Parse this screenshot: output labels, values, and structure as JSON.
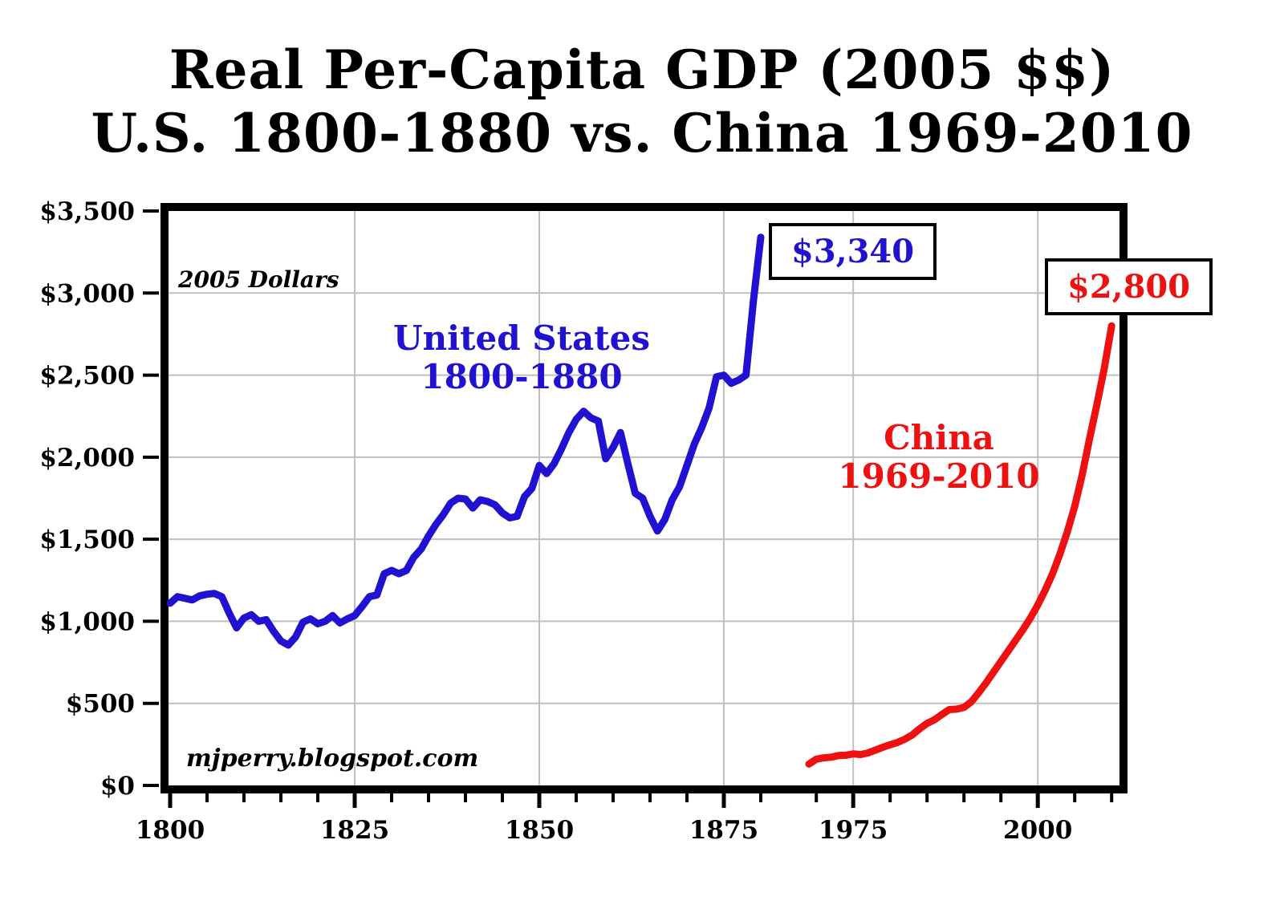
{
  "title": {
    "line1": "Real Per-Capita GDP (2005 $$)",
    "line2": "U.S. 1800-1880 vs. China 1969-2010"
  },
  "annotations": {
    "units_note": "2005 Dollars",
    "source_credit": "mjperry.blogspot.com",
    "us_series_label_line1": "United States",
    "us_series_label_line2": "1800-1880",
    "china_series_label_line1": "China",
    "china_series_label_line2": "1969-2010",
    "us_endpoint_value": "$3,340",
    "china_endpoint_value": "$2,800"
  },
  "colors": {
    "us": "#2012d0",
    "china": "#ee1111",
    "grid": "#bfbfbf",
    "frame": "#000000",
    "background": "#ffffff"
  },
  "chart_data": {
    "type": "line",
    "title": "Real Per-Capita GDP (2005 $$) — U.S. 1800-1880 vs. China 1969-2010",
    "ylabel": "2005 Dollars",
    "ylim": [
      0,
      3500
    ],
    "grid": true,
    "legend_position": "none",
    "axis_note": "x-axis has a break: U.S. years 1800-1880 plotted on the left, China years 1969-2010 on the right with the same per-year spacing",
    "ytick_values": [
      0,
      500,
      1000,
      1500,
      2000,
      2500,
      3000,
      3500
    ],
    "ytick_labels": [
      "$0",
      "$500",
      "$1,000",
      "$1,500",
      "$2,000",
      "$2,500",
      "$3,000",
      "$3,500"
    ],
    "xticks": [
      {
        "year": 1800,
        "label": "1800"
      },
      {
        "year": 1825,
        "label": "1825"
      },
      {
        "year": 1850,
        "label": "1850"
      },
      {
        "year": 1875,
        "label": "1875"
      },
      {
        "year": 1975,
        "label": "1975"
      },
      {
        "year": 2000,
        "label": "2000"
      }
    ],
    "minor_tick_years": [
      1805,
      1810,
      1815,
      1820,
      1830,
      1835,
      1840,
      1845,
      1855,
      1860,
      1865,
      1870,
      1880,
      1970,
      1980,
      1985,
      1990,
      1995,
      2005,
      2010
    ],
    "grid_years": [
      1825,
      1850,
      1875,
      1975,
      2000
    ],
    "series": [
      {
        "name": "United States 1800-1880",
        "color_key": "us",
        "endpoint_label": "$3,340",
        "x": [
          1800,
          1801,
          1802,
          1803,
          1804,
          1805,
          1806,
          1807,
          1808,
          1809,
          1810,
          1811,
          1812,
          1813,
          1814,
          1815,
          1816,
          1817,
          1818,
          1819,
          1820,
          1821,
          1822,
          1823,
          1824,
          1825,
          1826,
          1827,
          1828,
          1829,
          1830,
          1831,
          1832,
          1833,
          1834,
          1835,
          1836,
          1837,
          1838,
          1839,
          1840,
          1841,
          1842,
          1843,
          1844,
          1845,
          1846,
          1847,
          1848,
          1849,
          1850,
          1851,
          1852,
          1853,
          1854,
          1855,
          1856,
          1857,
          1858,
          1859,
          1860,
          1861,
          1862,
          1863,
          1864,
          1865,
          1866,
          1867,
          1868,
          1869,
          1870,
          1871,
          1872,
          1873,
          1874,
          1875,
          1876,
          1877,
          1878,
          1879,
          1880
        ],
        "values": [
          1110,
          1150,
          1140,
          1130,
          1155,
          1165,
          1170,
          1150,
          1050,
          960,
          1020,
          1040,
          1000,
          1010,
          940,
          880,
          855,
          905,
          995,
          1015,
          985,
          1000,
          1035,
          990,
          1015,
          1035,
          1090,
          1150,
          1160,
          1290,
          1310,
          1290,
          1310,
          1390,
          1440,
          1520,
          1590,
          1650,
          1720,
          1750,
          1745,
          1690,
          1740,
          1730,
          1710,
          1660,
          1630,
          1640,
          1760,
          1810,
          1950,
          1900,
          1960,
          2050,
          2150,
          2230,
          2280,
          2240,
          2220,
          1990,
          2060,
          2150,
          1960,
          1780,
          1750,
          1640,
          1550,
          1620,
          1740,
          1820,
          1950,
          2080,
          2180,
          2300,
          2490,
          2500,
          2450,
          2470,
          2500,
          2950,
          3340
        ]
      },
      {
        "name": "China 1969-2010",
        "color_key": "china",
        "endpoint_label": "$2,800",
        "x": [
          1969,
          1970,
          1971,
          1972,
          1973,
          1974,
          1975,
          1976,
          1977,
          1978,
          1979,
          1980,
          1981,
          1982,
          1983,
          1984,
          1985,
          1986,
          1987,
          1988,
          1989,
          1990,
          1991,
          1992,
          1993,
          1994,
          1995,
          1996,
          1997,
          1998,
          1999,
          2000,
          2001,
          2002,
          2003,
          2004,
          2005,
          2006,
          2007,
          2008,
          2009,
          2010
        ],
        "values": [
          130,
          160,
          168,
          172,
          182,
          184,
          192,
          188,
          198,
          215,
          232,
          248,
          262,
          282,
          308,
          345,
          378,
          400,
          432,
          462,
          465,
          475,
          510,
          565,
          625,
          690,
          755,
          820,
          885,
          950,
          1020,
          1100,
          1190,
          1290,
          1410,
          1545,
          1700,
          1890,
          2110,
          2320,
          2540,
          2800
        ]
      }
    ]
  }
}
